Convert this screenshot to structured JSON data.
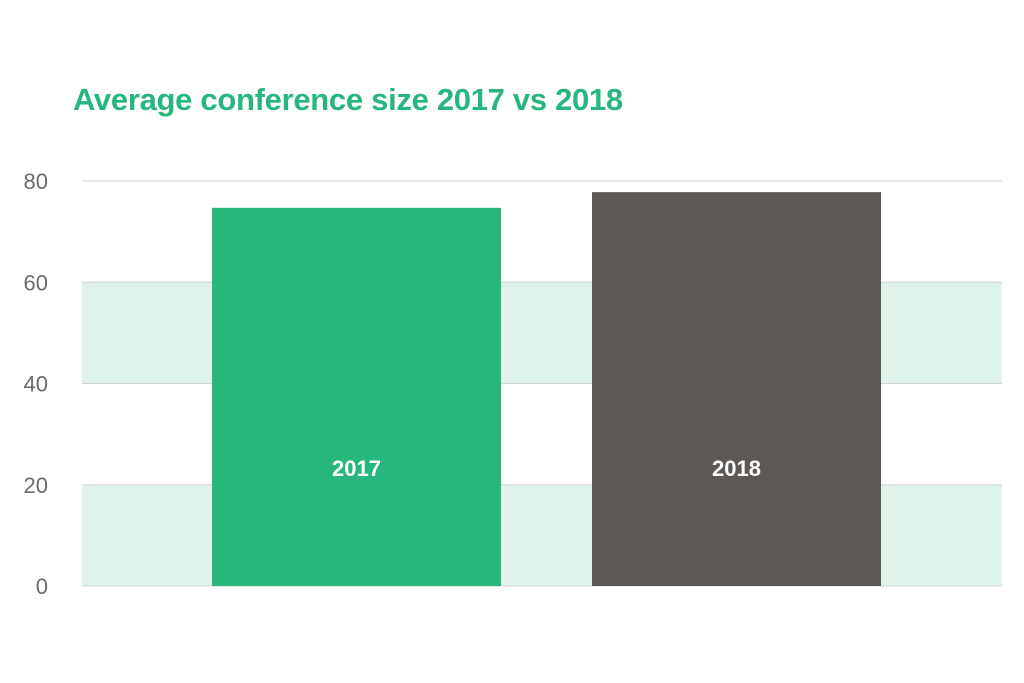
{
  "chart_data": {
    "type": "bar",
    "title": "Average conference size 2017 vs 2018",
    "categories": [
      "2017",
      "2018"
    ],
    "values": [
      74.7,
      77.8
    ],
    "bar_colors": [
      "#27b67c",
      "#5c5856"
    ],
    "ylim": [
      0,
      80
    ],
    "yticks": [
      "0",
      "20",
      "40",
      "60",
      "80"
    ],
    "grid": true,
    "band_color": "#dff3ea",
    "gridline_color": "#d4d4d4",
    "title_color": "#27b67c",
    "legend": "none"
  }
}
